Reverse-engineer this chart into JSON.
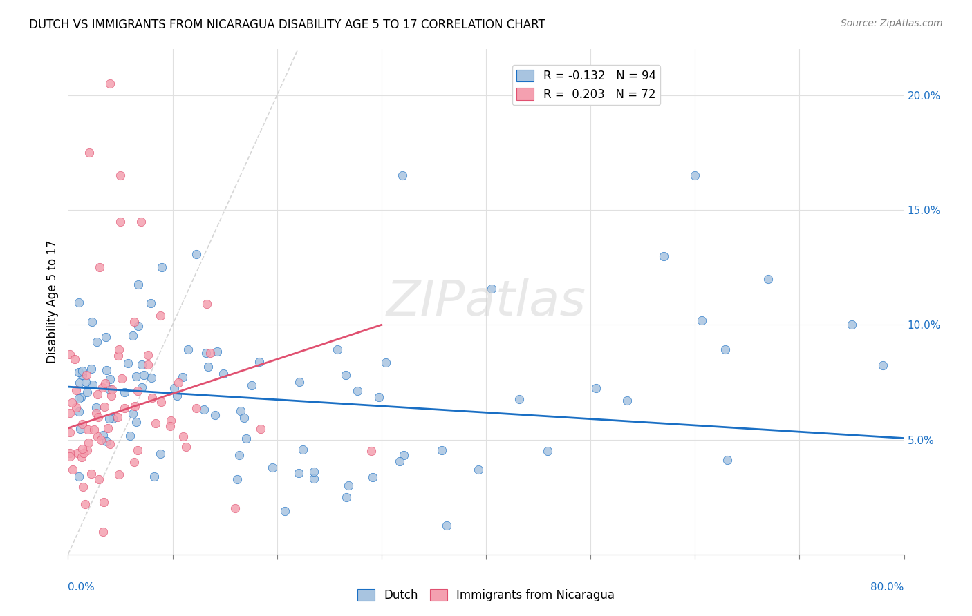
{
  "title": "DUTCH VS IMMIGRANTS FROM NICARAGUA DISABILITY AGE 5 TO 17 CORRELATION CHART",
  "source": "Source: ZipAtlas.com",
  "ylabel": "Disability Age 5 to 17",
  "xlim": [
    0.0,
    0.8
  ],
  "ylim": [
    0.0,
    0.22
  ],
  "legend_entries": [
    {
      "label": "R = -0.132   N = 94",
      "color": "#a8c4e0"
    },
    {
      "label": "R =  0.203   N = 72",
      "color": "#f4a0b0"
    }
  ],
  "legend_labels_bottom": [
    "Dutch",
    "Immigrants from Nicaragua"
  ],
  "watermark": "ZIPatlas",
  "blue_color": "#a8c4e0",
  "pink_color": "#f4a0b0",
  "blue_line_color": "#1a6fc4",
  "pink_line_color": "#e05070",
  "diag_line_color": "#cccccc"
}
